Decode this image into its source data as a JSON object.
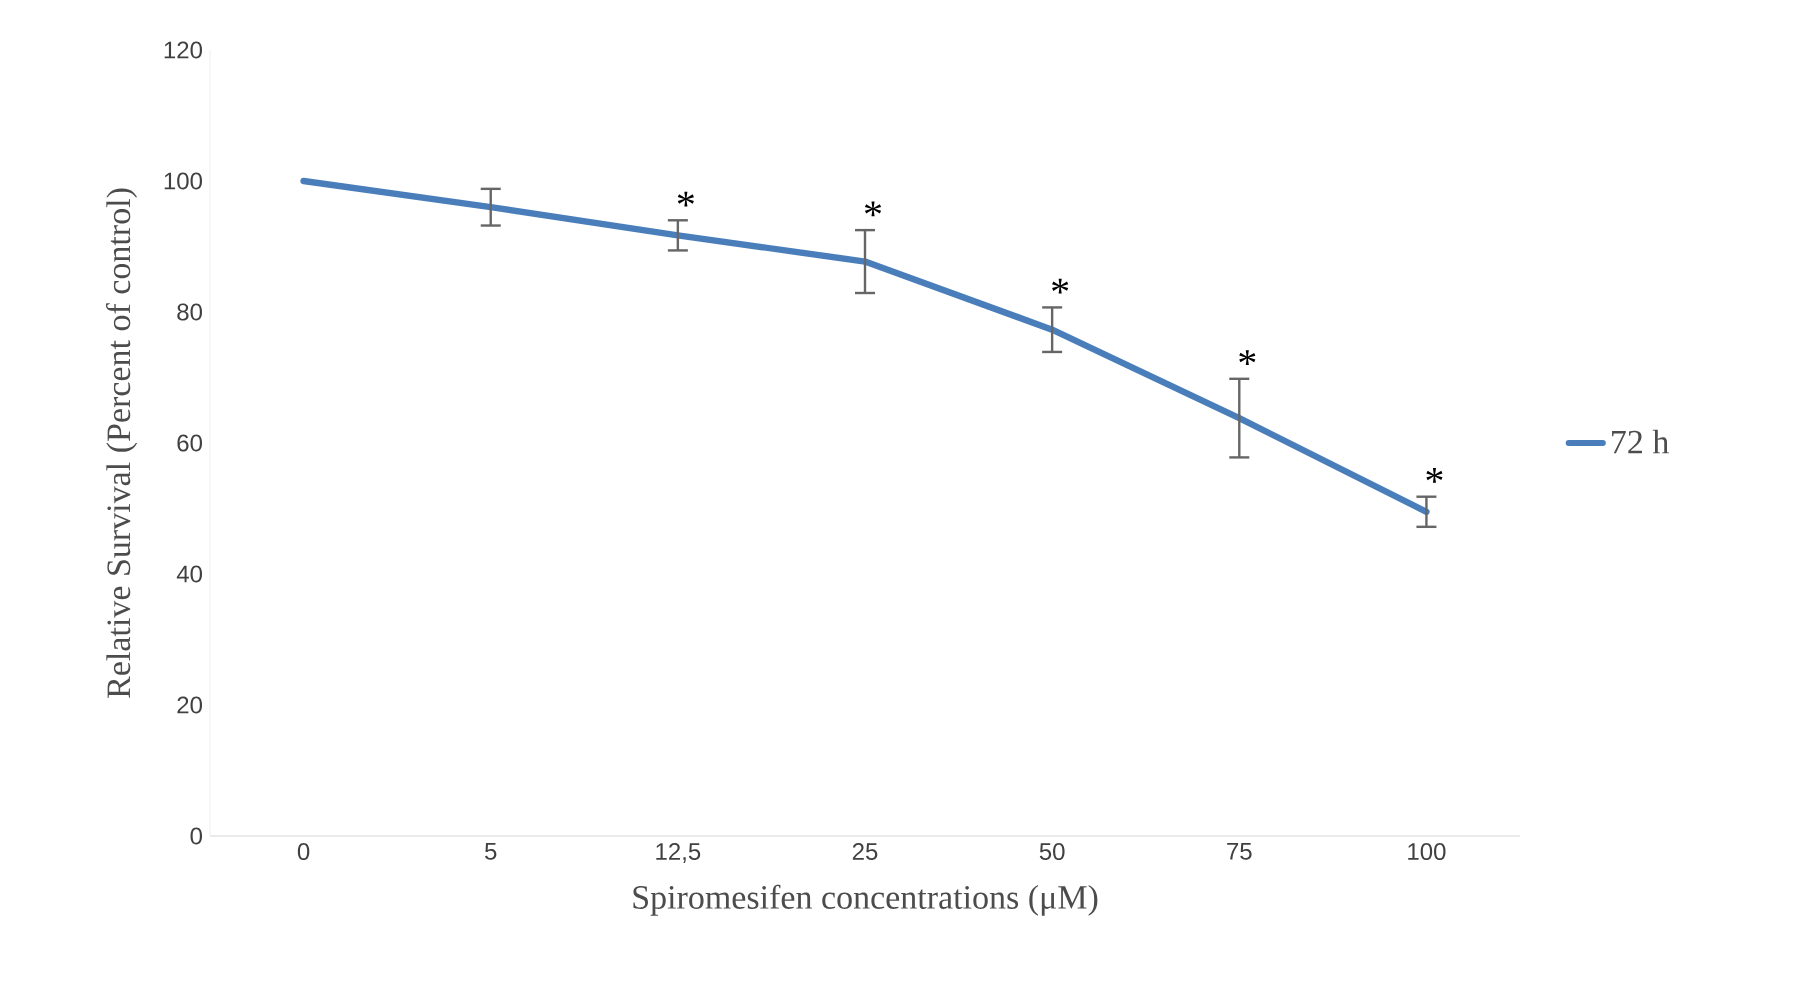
{
  "chart_data": {
    "type": "line",
    "xlabel": "Spiromesifen concentrations (μM)",
    "ylabel": "Relative Survival (Percent of control)",
    "categories": [
      "0",
      "5",
      "12,5",
      "25",
      "50",
      "75",
      "100"
    ],
    "series": [
      {
        "name": "72 h",
        "color": "#4a7ebb",
        "values": [
          100,
          96,
          91.7,
          87.7,
          77.3,
          63.8,
          49.5
        ],
        "errors": [
          null,
          2.8,
          2.3,
          4.8,
          3.4,
          6,
          2.3
        ]
      }
    ],
    "ylim": [
      0,
      120
    ],
    "yticks": [
      0,
      20,
      40,
      60,
      80,
      100,
      120
    ],
    "grid": false,
    "legend": "right",
    "marker": "none",
    "line_style": "solid",
    "annotations": [
      {
        "text": "*",
        "x": "12,5",
        "y": 91.7
      },
      {
        "text": "*",
        "x": "25",
        "y": 87.7
      },
      {
        "text": "*",
        "x": "50",
        "y": 77.3
      },
      {
        "text": "*",
        "x": "75",
        "y": 63.8
      },
      {
        "text": "*",
        "x": "100",
        "y": 49.5
      }
    ]
  }
}
